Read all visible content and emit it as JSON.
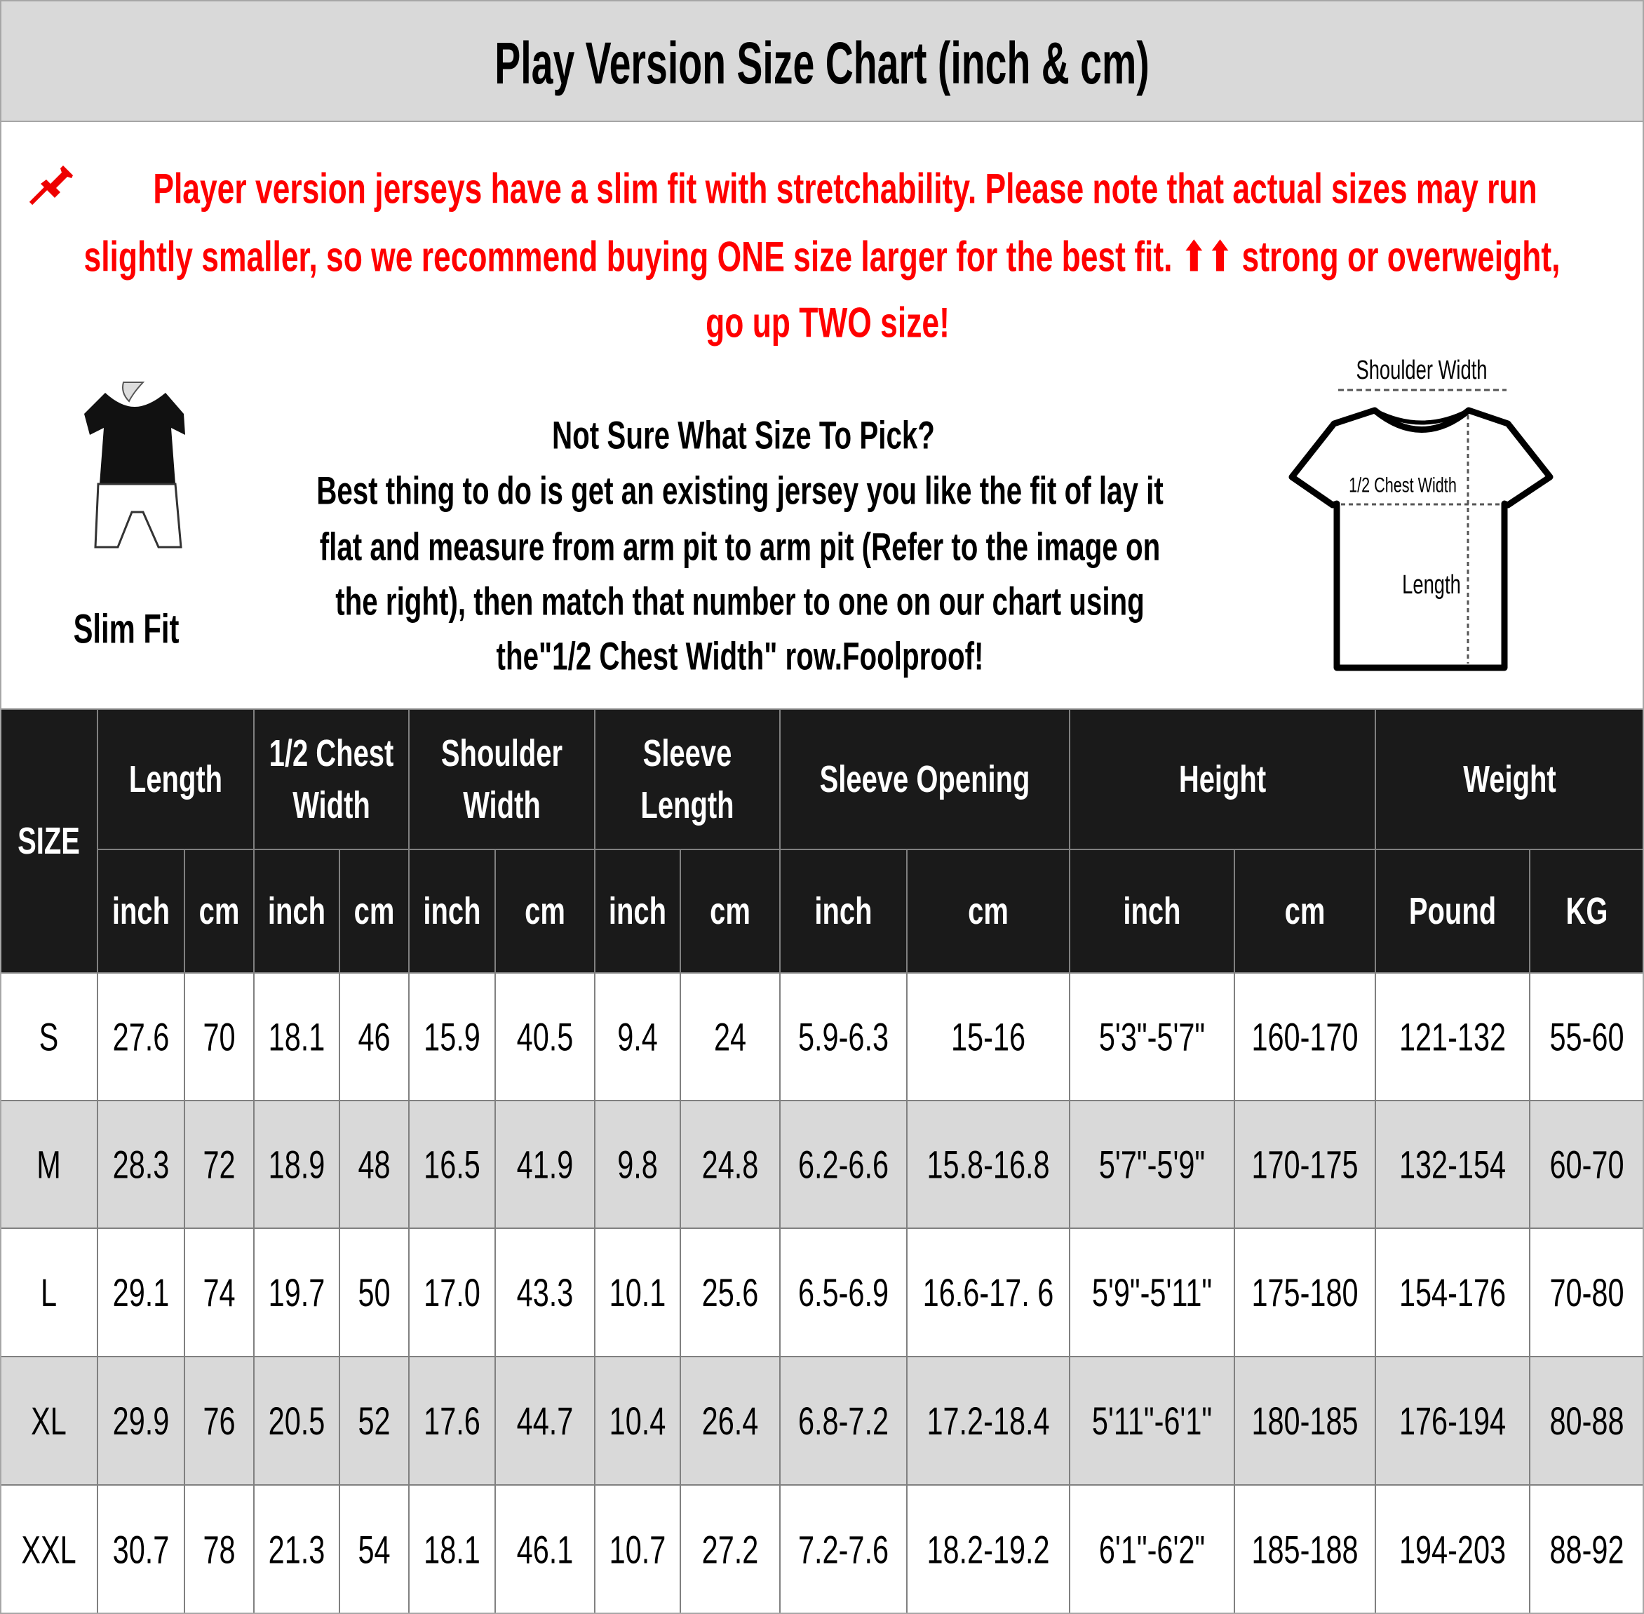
{
  "header": {
    "title": "Play Version Size Chart (inch & cm)"
  },
  "notice": {
    "lines": [
      "Player version jerseys have a slim fit with stretchability. Please note that actual sizes may run",
      "slightly smaller, so we recommend buying ONE size larger for the best fit. ⬆⬆ strong or overweight,",
      "go up TWO size!"
    ]
  },
  "fit": {
    "label": "Slim Fit"
  },
  "advice": {
    "lines": [
      "Not Sure What Size To Pick?",
      "Best thing to do is get an existing jersey you like the fit of lay it",
      "flat and measure from arm pit to arm pit (Refer to the image on",
      "the right), then match that number to one on our chart using",
      "the\"1/2 Chest Width\" row.Foolproof!"
    ]
  },
  "diagram": {
    "shoulder": "Shoulder Width",
    "chest": "1/2 Chest Width",
    "length": "Length"
  },
  "table": {
    "size_header": "SIZE",
    "groups": [
      [
        "Length"
      ],
      [
        "1/2 Chest",
        "Width"
      ],
      [
        "Shoulder",
        "Width"
      ],
      [
        "Sleeve",
        "Length"
      ],
      [
        "Sleeve Opening"
      ],
      [
        "Height"
      ],
      [
        "Weight"
      ]
    ],
    "units": [
      "inch",
      "cm",
      "inch",
      "cm",
      "inch",
      "cm",
      "inch",
      "cm",
      "inch",
      "cm",
      "inch",
      "cm",
      "Pound",
      "KG"
    ],
    "rows": [
      [
        "S",
        "27.6",
        "70",
        "18.1",
        "46",
        "15.9",
        "40.5",
        "9.4",
        "24",
        "5.9-6.3",
        "15-16",
        "5'3\"-5'7\"",
        "160-170",
        "121-132",
        "55-60"
      ],
      [
        "M",
        "28.3",
        "72",
        "18.9",
        "48",
        "16.5",
        "41.9",
        "9.8",
        "24.8",
        "6.2-6.6",
        "15.8-16.8",
        "5'7\"-5'9\"",
        "170-175",
        "132-154",
        "60-70"
      ],
      [
        "L",
        "29.1",
        "74",
        "19.7",
        "50",
        "17.0",
        "43.3",
        "10.1",
        "25.6",
        "6.5-6.9",
        "16.6-17. 6",
        "5'9\"-5'11\"",
        "175-180",
        "154-176",
        "70-80"
      ],
      [
        "XL",
        "29.9",
        "76",
        "20.5",
        "52",
        "17.6",
        "44.7",
        "10.4",
        "26.4",
        "6.8-7.2",
        "17.2-18.4",
        "5'11\"-6'1\"",
        "180-185",
        "176-194",
        "80-88"
      ],
      [
        "XXL",
        "30.7",
        "78",
        "21.3",
        "54",
        "18.1",
        "46.1",
        "10.7",
        "27.2",
        "7.2-7.6",
        "18.2-19.2",
        "6'1\"-6'2\"",
        "185-188",
        "194-203",
        "88-92"
      ]
    ]
  }
}
